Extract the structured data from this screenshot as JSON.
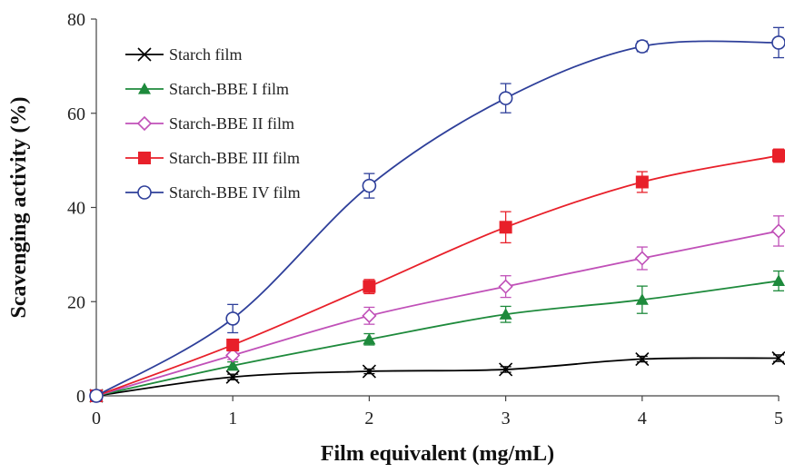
{
  "chart_data": {
    "type": "line",
    "xlabel": "Film equivalent (mg/mL)",
    "ylabel": "Scavenging activity (%)",
    "xlim": [
      0,
      5
    ],
    "ylim": [
      0,
      80
    ],
    "x_ticks": [
      0,
      1,
      2,
      3,
      4,
      5
    ],
    "y_ticks": [
      0,
      20,
      40,
      60,
      80
    ],
    "grid": false,
    "legend_position": "top-left",
    "x": [
      0,
      1,
      2,
      3,
      4,
      5
    ],
    "series": [
      {
        "name": "Starch film",
        "marker": "x",
        "color": "#000000",
        "values": [
          0,
          4,
          5.2,
          5.6,
          7.8,
          8
        ],
        "errors": [
          0,
          0.6,
          0.5,
          0.6,
          0.6,
          0.7
        ]
      },
      {
        "name": "Starch-BBE I film",
        "marker": "triangle",
        "color": "#1e8a3c",
        "values": [
          0,
          6.4,
          12,
          17.3,
          20.4,
          24.4
        ],
        "errors": [
          0,
          0.8,
          1.2,
          1.7,
          2.9,
          2.1
        ]
      },
      {
        "name": "Starch-BBE II film",
        "marker": "diamond",
        "color": "#c050b8",
        "values": [
          0,
          8.6,
          17,
          23.2,
          29.2,
          35
        ],
        "errors": [
          0,
          0.9,
          1.8,
          2.3,
          2.4,
          3.2
        ]
      },
      {
        "name": "Starch-BBE III film",
        "marker": "square",
        "color": "#e8202a",
        "values": [
          0,
          10.8,
          23.2,
          35.8,
          45.4,
          51
        ],
        "errors": [
          0,
          0.8,
          1.5,
          3.3,
          2.2,
          1.4
        ]
      },
      {
        "name": "Starch-BBE IV film",
        "marker": "circle",
        "color": "#2e3f9a",
        "values": [
          0,
          16.4,
          44.6,
          63.2,
          74.2,
          75
        ],
        "errors": [
          0,
          3.0,
          2.6,
          3.1,
          1.1,
          3.2
        ]
      }
    ]
  }
}
